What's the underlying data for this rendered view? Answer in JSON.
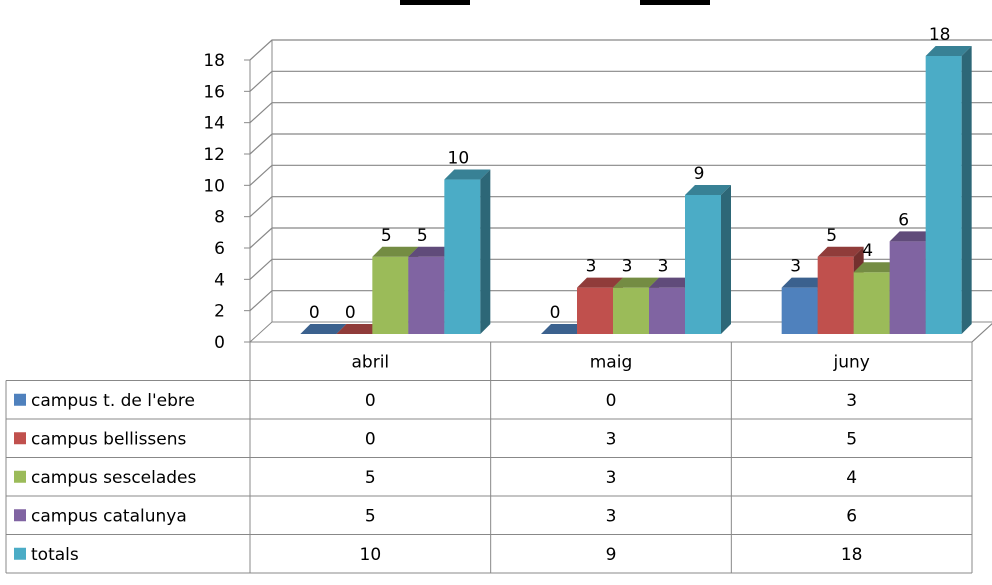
{
  "chart_data": {
    "type": "bar",
    "variant": "3d-clustered-column-with-data-table",
    "categories": [
      "abril",
      "maig",
      "juny"
    ],
    "series": [
      {
        "name": "campus t. de l'ebre",
        "values": [
          0,
          0,
          3
        ],
        "color": "#4F81BD"
      },
      {
        "name": "campus bellissens",
        "values": [
          0,
          3,
          5
        ],
        "color": "#C0504D"
      },
      {
        "name": "campus sescelades",
        "values": [
          5,
          3,
          4
        ],
        "color": "#9BBB59"
      },
      {
        "name": "campus catalunya",
        "values": [
          5,
          3,
          6
        ],
        "color": "#8064A2"
      },
      {
        "name": "totals",
        "values": [
          10,
          9,
          18
        ],
        "color": "#4BACC6"
      }
    ],
    "yticks": [
      "0",
      "2",
      "4",
      "6",
      "8",
      "10",
      "12",
      "14",
      "16",
      "18"
    ],
    "ylim": [
      0,
      18
    ],
    "grid": true,
    "data_labels": true,
    "legend": "data-table-left",
    "title": ""
  }
}
